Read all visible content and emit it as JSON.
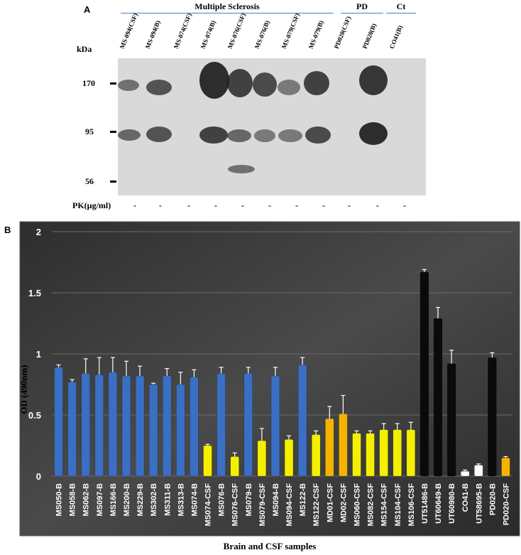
{
  "panel_a": {
    "letter": "A",
    "group_headers": [
      "Multiple Sclerosis",
      "PD",
      "Ct"
    ],
    "lanes": [
      "MS-094(CSF)",
      "MS-094(B)",
      "MS-074(CSF)",
      "MS-074(B)",
      "MS-076(CSF)",
      "MS-076(B)",
      "MS-079(CSF)",
      "MS-079(B)",
      "PD020(CSF)",
      "PD020(B)",
      "CO41(B)"
    ],
    "kda_label": "kDa",
    "markers": [
      "170",
      "95",
      "56"
    ],
    "pk_label": "PK(µg/ml)",
    "pk_values": [
      "-",
      "-",
      "-",
      "-",
      "-",
      "-",
      "-",
      "-",
      "-",
      "-",
      "-"
    ]
  },
  "panel_b": {
    "letter": "B"
  },
  "chart_data": {
    "type": "bar",
    "categories": [
      "MS050-B",
      "MS058-B",
      "MS062-B",
      "MS097-B",
      "MS166-B",
      "MS200-B",
      "MS229-B",
      "MS302-B",
      "MS311-B",
      "MS313-B",
      "MS074-B",
      "MS074-CSF",
      "MS076-B",
      "MS076-CSF",
      "MS079-B",
      "MS079-CSF",
      "MS094-B",
      "MS094-CSF",
      "MS122-B",
      "MS122-CSF",
      "MD01-CSF",
      "MD02-CSF",
      "MS060-CSF",
      "MS082-CSF",
      "MS154-CSF",
      "MS104-CSF",
      "MS106-CSF",
      "UT51486-B",
      "UT60649-B",
      "UT60980-B",
      "CO41-B",
      "UT58695-B",
      "PD020-B",
      "PD020-CSF"
    ],
    "values": [
      0.89,
      0.77,
      0.84,
      0.83,
      0.85,
      0.82,
      0.82,
      0.75,
      0.82,
      0.75,
      0.81,
      0.25,
      0.84,
      0.16,
      0.84,
      0.29,
      0.82,
      0.3,
      0.91,
      0.34,
      0.47,
      0.51,
      0.35,
      0.35,
      0.38,
      0.38,
      0.38,
      1.67,
      1.29,
      0.92,
      0.04,
      0.09,
      0.97,
      0.15
    ],
    "errors": [
      0.02,
      0.02,
      0.12,
      0.14,
      0.12,
      0.12,
      0.08,
      0.01,
      0.06,
      0.1,
      0.06,
      0.01,
      0.05,
      0.03,
      0.05,
      0.1,
      0.07,
      0.03,
      0.06,
      0.03,
      0.1,
      0.15,
      0.02,
      0.02,
      0.05,
      0.05,
      0.06,
      0.02,
      0.09,
      0.11,
      0.01,
      0.01,
      0.04,
      0.01
    ],
    "colors": [
      "#3a6fc4",
      "#3a6fc4",
      "#3a6fc4",
      "#3a6fc4",
      "#3a6fc4",
      "#3a6fc4",
      "#3a6fc4",
      "#3a6fc4",
      "#3a6fc4",
      "#3a6fc4",
      "#3a6fc4",
      "#f5f000",
      "#3a6fc4",
      "#f5f000",
      "#3a6fc4",
      "#f5f000",
      "#3a6fc4",
      "#f5f000",
      "#3a6fc4",
      "#f5f000",
      "#f5b300",
      "#f5b300",
      "#f5f000",
      "#f5f000",
      "#f5f000",
      "#f5f000",
      "#f5f000",
      "#0a0a0a",
      "#0a0a0a",
      "#0a0a0a",
      "#ffffff",
      "#ffffff",
      "#0a0a0a",
      "#f5b300"
    ],
    "title": "",
    "xlabel": "Brain and CSF samples",
    "ylabel": "OD (490nm)",
    "ylim": [
      0,
      2
    ],
    "yticks": [
      "0",
      "0.5",
      "1",
      "1.5",
      "2"
    ],
    "grid": true,
    "background": "#3a3a3a"
  }
}
